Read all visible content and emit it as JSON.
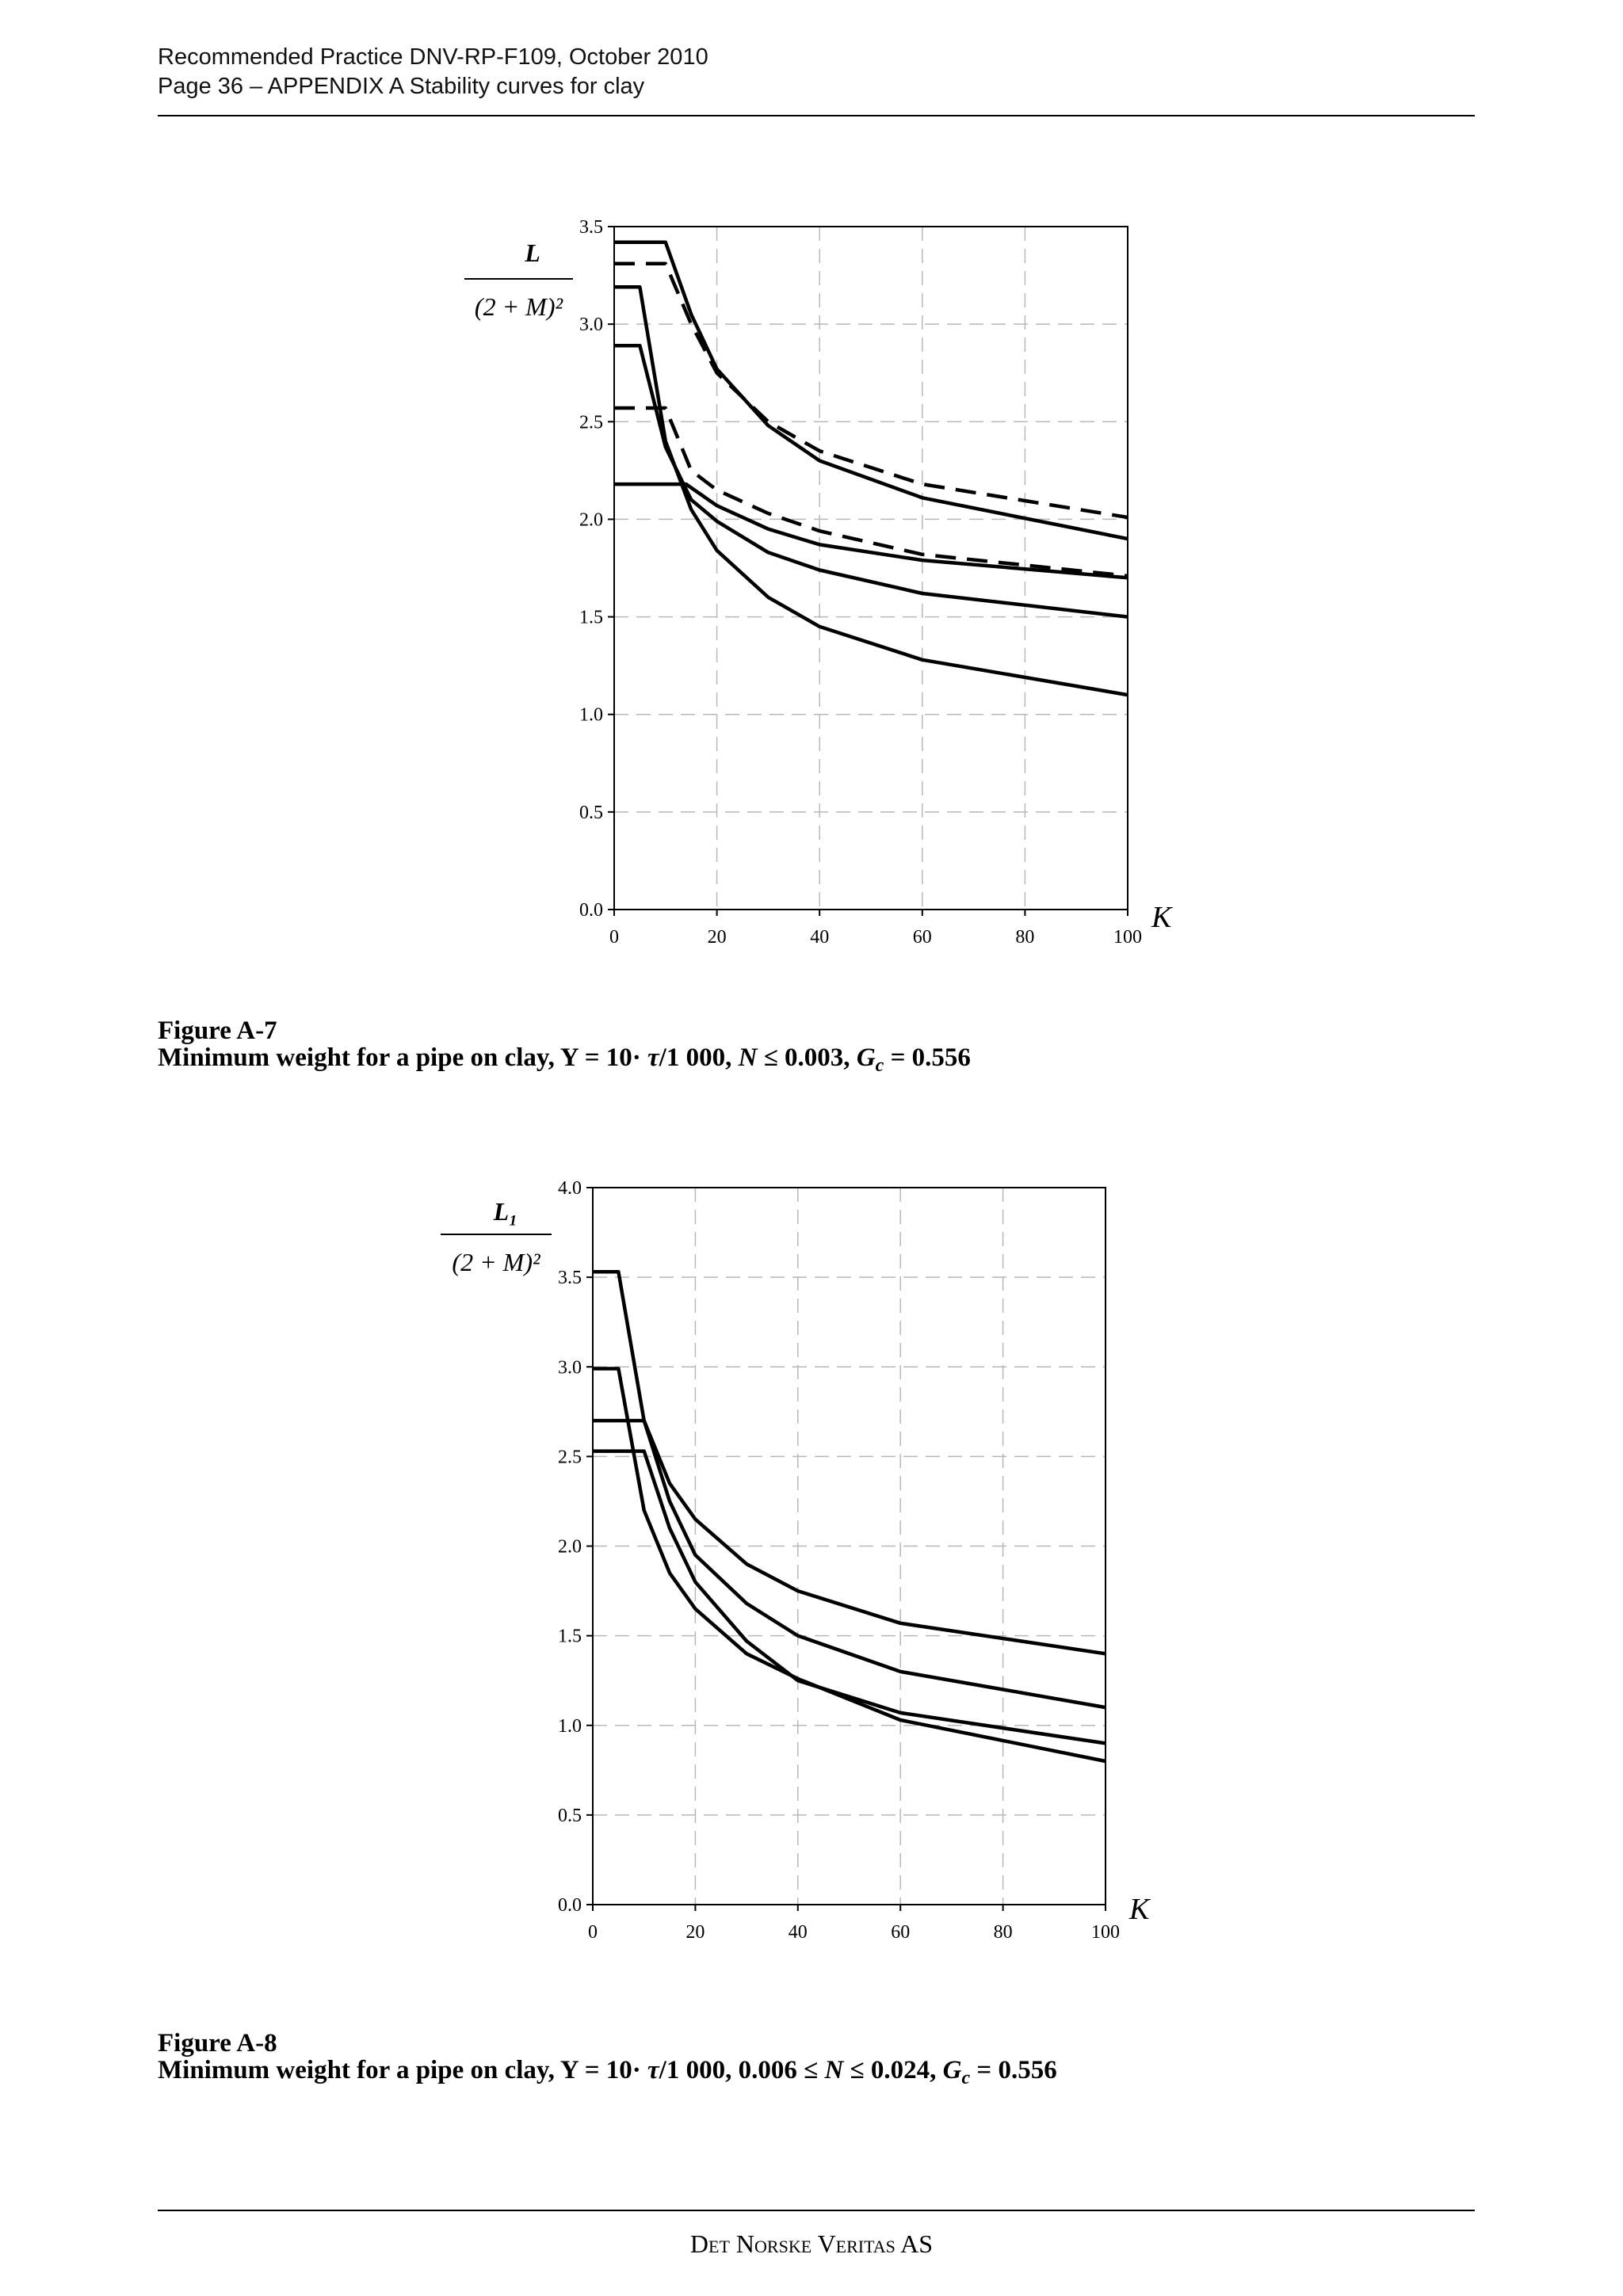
{
  "header": {
    "line1": "Recommended Practice DNV-RP-F109,  October 2010",
    "line2": "Page 36  –  APPENDIX A Stability curves for clay"
  },
  "chart_data": [
    {
      "type": "line",
      "xlabel": "K",
      "ylabel": {
        "numerator": "L",
        "denominator": "(2 + M)²"
      },
      "xlim": [
        0,
        100
      ],
      "xticks": [
        0,
        20,
        40,
        60,
        80,
        100
      ],
      "ylim": [
        0,
        3.5
      ],
      "yticks": [
        {
          "value": 0,
          "label": "0.0"
        },
        0.5,
        {
          "value": 1,
          "label": "1.0"
        },
        1.5,
        {
          "value": 2,
          "label": "2.0"
        },
        2.5,
        {
          "value": 3,
          "label": "3.0"
        },
        3.5
      ],
      "grid": true,
      "series": [
        {
          "color": "#000000",
          "linestyle": "solid",
          "x": [
            0,
            10,
            15,
            20,
            30,
            40,
            60,
            100
          ],
          "values": [
            3.42,
            3.42,
            3.05,
            2.77,
            2.48,
            2.3,
            2.11,
            1.9
          ]
        },
        {
          "color": "#000000",
          "linestyle": "dashed",
          "x": [
            0,
            10,
            15,
            20,
            30,
            40,
            60,
            100
          ],
          "values": [
            3.31,
            3.31,
            3.0,
            2.75,
            2.5,
            2.35,
            2.18,
            2.01
          ]
        },
        {
          "color": "#000000",
          "linestyle": "solid",
          "x": [
            0,
            5,
            10,
            15,
            20,
            30,
            40,
            60,
            100
          ],
          "values": [
            3.19,
            3.19,
            2.4,
            2.05,
            1.84,
            1.6,
            1.45,
            1.28,
            1.1
          ]
        },
        {
          "color": "#000000",
          "linestyle": "solid",
          "x": [
            0,
            5,
            10,
            15,
            20,
            30,
            40,
            60,
            100
          ],
          "values": [
            2.89,
            2.89,
            2.37,
            2.1,
            1.99,
            1.83,
            1.74,
            1.62,
            1.5
          ]
        },
        {
          "color": "#000000",
          "linestyle": "dashed",
          "x": [
            0,
            5,
            10,
            15,
            20,
            30,
            40,
            60,
            100
          ],
          "values": [
            2.57,
            2.57,
            2.57,
            2.25,
            2.15,
            2.03,
            1.94,
            1.82,
            1.71
          ]
        },
        {
          "color": "#000000",
          "linestyle": "solid",
          "x": [
            0,
            14,
            20,
            30,
            40,
            60,
            100
          ],
          "values": [
            2.18,
            2.18,
            2.07,
            1.95,
            1.87,
            1.79,
            1.7
          ]
        }
      ]
    },
    {
      "type": "line",
      "xlabel": "K",
      "ylabel": {
        "numerator": "L₁",
        "denominator": "(2 + M)²"
      },
      "xlim": [
        0,
        100
      ],
      "xticks": [
        0,
        20,
        40,
        60,
        80,
        100
      ],
      "ylim": [
        0,
        4
      ],
      "yticks": [
        {
          "value": 0,
          "label": "0.0"
        },
        0.5,
        {
          "value": 1,
          "label": "1.0"
        },
        1.5,
        {
          "value": 2,
          "label": "2.0"
        },
        2.5,
        {
          "value": 3,
          "label": "3.0"
        },
        3.5,
        {
          "value": 4,
          "label": "4.0"
        }
      ],
      "grid": true,
      "series": [
        {
          "color": "#000000",
          "linestyle": "solid",
          "x": [
            0,
            5,
            10,
            15,
            20,
            30,
            40,
            60,
            100
          ],
          "values": [
            3.53,
            3.53,
            2.7,
            2.35,
            2.15,
            1.9,
            1.75,
            1.57,
            1.4
          ]
        },
        {
          "color": "#000000",
          "linestyle": "solid",
          "x": [
            0,
            5,
            10,
            15,
            20,
            30,
            40,
            60,
            100
          ],
          "values": [
            2.99,
            2.99,
            2.2,
            1.85,
            1.65,
            1.4,
            1.26,
            1.03,
            0.8
          ]
        },
        {
          "color": "#000000",
          "linestyle": "solid",
          "x": [
            0,
            10,
            15,
            20,
            30,
            40,
            60,
            100
          ],
          "values": [
            2.7,
            2.7,
            2.25,
            1.95,
            1.68,
            1.5,
            1.3,
            1.1
          ]
        },
        {
          "color": "#000000",
          "linestyle": "solid",
          "x": [
            0,
            10,
            15,
            20,
            30,
            40,
            60,
            100
          ],
          "values": [
            2.53,
            2.53,
            2.1,
            1.8,
            1.47,
            1.25,
            1.07,
            0.9
          ]
        }
      ]
    }
  ],
  "captions": [
    {
      "label": "Figure A-7",
      "text": [
        "Minimum weight for a pipe on clay, Y = 10· ",
        "τ",
        "/1 000, ",
        "N",
        " ≤ 0.003, ",
        "G",
        "c",
        " = 0.556"
      ]
    },
    {
      "label": "Figure A-8",
      "text": [
        "Minimum weight for a pipe on clay, Y = 10· ",
        "τ",
        "/1 000, 0.006 ≤ ",
        "N",
        " ≤ 0.024, ",
        "G",
        "c",
        " = 0.556"
      ]
    }
  ],
  "footer": "Det Norske Veritas AS"
}
